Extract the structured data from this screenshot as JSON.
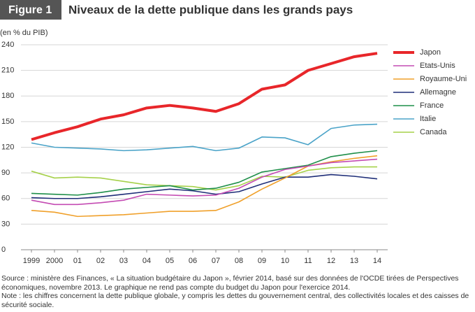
{
  "chart_data": {
    "type": "line",
    "figure_label": "Figure 1",
    "title": "Niveaux de la dette publique dans les grands pays",
    "y_label": "(en % du PIB)",
    "categories": [
      "1999",
      "2000",
      "01",
      "02",
      "03",
      "04",
      "05",
      "06",
      "07",
      "08",
      "09",
      "10",
      "11",
      "12",
      "13",
      "14"
    ],
    "series": [
      {
        "name": "Japon",
        "color": "#e8262a",
        "values": [
          129,
          137,
          144,
          153,
          158,
          166,
          169,
          166,
          162,
          171,
          188,
          193,
          210,
          218,
          226,
          230
        ]
      },
      {
        "name": "Etats-Unis",
        "color": "#c44bb3",
        "values": [
          58,
          53,
          53,
          55,
          58,
          65,
          64,
          63,
          64,
          72,
          85,
          94,
          98,
          102,
          104,
          106
        ]
      },
      {
        "name": "Royaume-Uni",
        "color": "#f0a02a",
        "values": [
          46,
          44,
          39,
          40,
          41,
          43,
          45,
          45,
          46,
          56,
          71,
          84,
          98,
          103,
          107,
          110
        ]
      },
      {
        "name": "Allemagne",
        "color": "#1f2e78",
        "values": [
          61,
          60,
          60,
          62,
          65,
          68,
          71,
          69,
          65,
          68,
          77,
          85,
          85,
          88,
          86,
          83
        ]
      },
      {
        "name": "France",
        "color": "#1f8f4a",
        "values": [
          66,
          65,
          64,
          67,
          71,
          73,
          75,
          70,
          72,
          79,
          91,
          95,
          99,
          109,
          113,
          116
        ]
      },
      {
        "name": "Italie",
        "color": "#4aa3c8",
        "values": [
          125,
          120,
          119,
          118,
          116,
          117,
          119,
          121,
          116,
          119,
          132,
          131,
          123,
          142,
          146,
          147
        ]
      },
      {
        "name": "Canada",
        "color": "#a6d14a",
        "values": [
          92,
          84,
          85,
          84,
          80,
          76,
          75,
          74,
          70,
          75,
          86,
          85,
          93,
          96,
          97,
          97
        ]
      }
    ],
    "ylim": [
      0,
      240
    ],
    "yticks": [
      0,
      30,
      60,
      90,
      120,
      150,
      180,
      210,
      240
    ],
    "grid": true,
    "source": "Source : ministère des Finances, « La situation budgétaire du Japon », février 2014, basé sur des données de l'OCDE tirées de Perspectives économiques, novembre 2013. Le graphique ne rend pas compte du budget du Japon pour l'exercice 2014.",
    "note": "Note : les chiffres concernent la dette publique globale, y compris les dettes du gouvernement central, des collectivités locales et des caisses de sécurité sociale."
  }
}
